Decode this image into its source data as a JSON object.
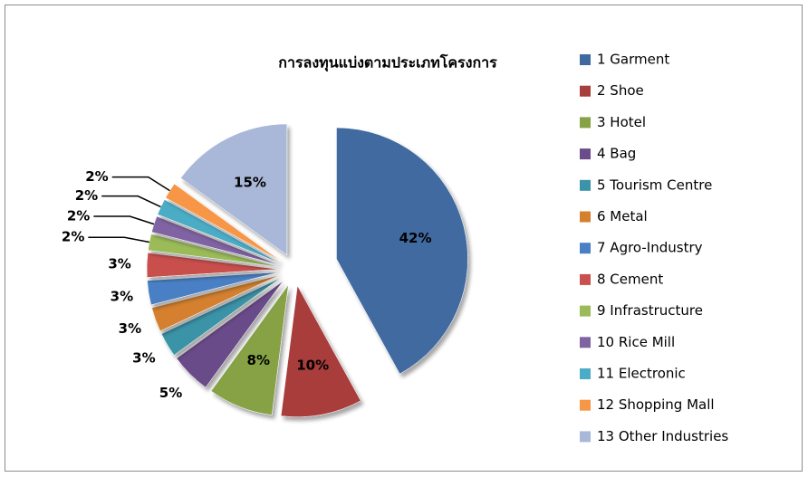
{
  "chart_data": {
    "type": "pie",
    "title": "การลงทุนแบ่งตามประเภทโครงการ",
    "categories": [
      "1 Garment",
      "2 Shoe",
      "3 Hotel",
      "4 Bag",
      "5 Tourism Centre",
      "6 Metal",
      "7 Agro-Industry",
      "8 Cement",
      "9 Infrastructure",
      "10 Rice Mill",
      "11 Electronic",
      "12 Shopping Mall",
      "13 Other Industries"
    ],
    "values": [
      42,
      10,
      8,
      5,
      3,
      3,
      3,
      3,
      2,
      2,
      2,
      2,
      15
    ],
    "value_labels": [
      "42%",
      "10%",
      "8%",
      "5%",
      "3%",
      "3%",
      "3%",
      "3%",
      "2%",
      "2%",
      "2%",
      "2%",
      "15%"
    ],
    "colors": [
      "#3f6aa0",
      "#a83e3b",
      "#86a244",
      "#6b4c8a",
      "#3a93a8",
      "#d4802f",
      "#4a7fc4",
      "#c9504d",
      "#9bbb59",
      "#8064a2",
      "#4bacc6",
      "#f79646",
      "#a9b8d8"
    ],
    "legend": "right"
  }
}
